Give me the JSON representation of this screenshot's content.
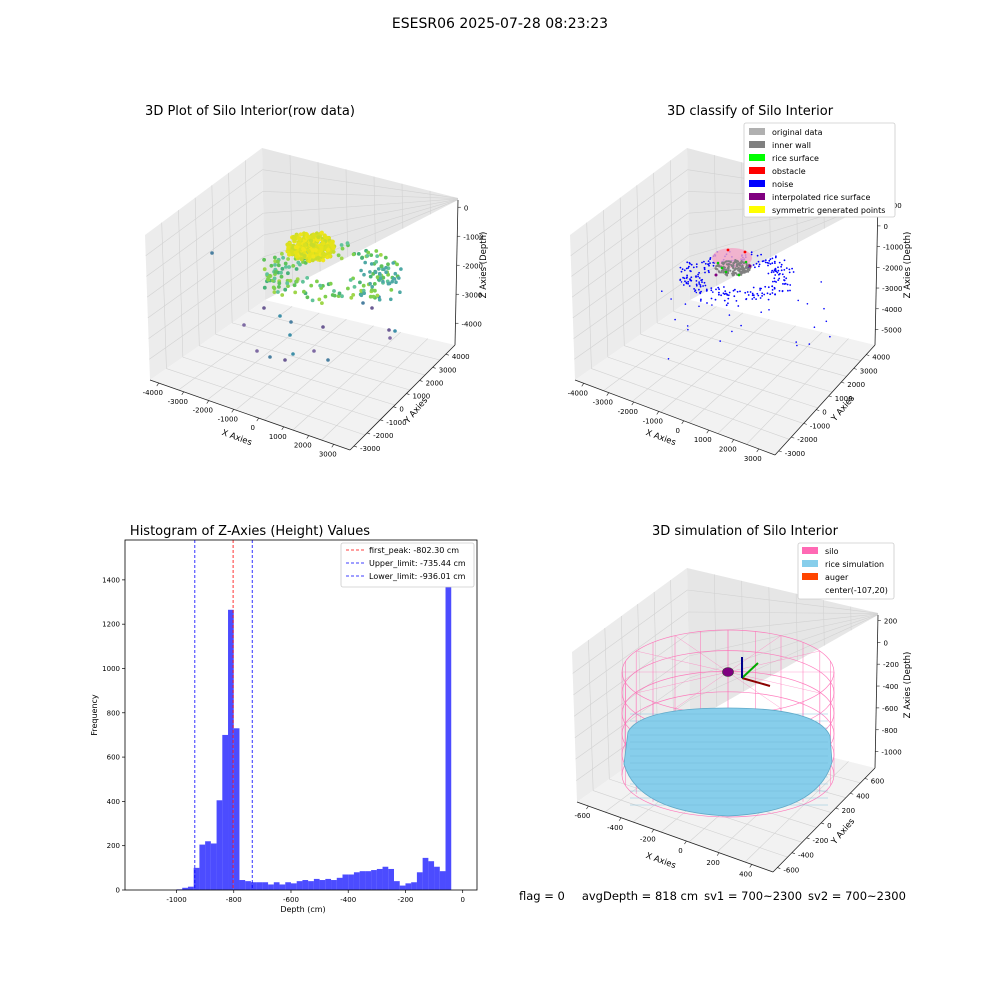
{
  "suptitle": "ESESR06 2025-07-28 08:23:23",
  "raw3d": {
    "title": "3D Plot of Silo Interior(row data)",
    "xlabel": "X Axies",
    "ylabel": "Y Axies",
    "zlabel": "Z Axies (Depth)",
    "xticks": [
      "-4000",
      "-3000",
      "-2000",
      "-1000",
      "0",
      "1000",
      "2000",
      "3000"
    ],
    "yticks": [
      "-3000",
      "-2000",
      "-1000",
      "0",
      "1000",
      "2000",
      "3000",
      "4000"
    ],
    "zticks": [
      "0",
      "-1000",
      "-2000",
      "-3000",
      "-4000"
    ]
  },
  "classify3d": {
    "title": "3D classify of Silo Interior",
    "xlabel": "X Axies",
    "ylabel": "Y Axies",
    "zlabel": "Z Axies (Depth)",
    "xticks": [
      "-4000",
      "-3000",
      "-2000",
      "-1000",
      "0",
      "1000",
      "2000",
      "3000"
    ],
    "yticks": [
      "-3000",
      "-2000",
      "-1000",
      "0",
      "1000",
      "2000",
      "3000",
      "4000"
    ],
    "zticks": [
      "1000",
      "0",
      "-1000",
      "-2000",
      "-3000",
      "-4000",
      "-5000"
    ],
    "legend": [
      {
        "label": "original data",
        "color": "#b0b0b0"
      },
      {
        "label": "inner wall",
        "color": "#808080"
      },
      {
        "label": "rice surface",
        "color": "#00ff00"
      },
      {
        "label": "obstacle",
        "color": "#ff0000"
      },
      {
        "label": "noise",
        "color": "#0000ff"
      },
      {
        "label": "interpolated rice surface",
        "color": "#800080"
      },
      {
        "label": "symmetric generated points",
        "color": "#ffff00"
      }
    ]
  },
  "sim3d": {
    "title": "3D simulation of Silo Interior",
    "xlabel": "X Axies",
    "ylabel": "Y Axies",
    "zlabel": "Z Axies (Depth)",
    "xticks": [
      "-600",
      "-400",
      "-200",
      "0",
      "200",
      "400"
    ],
    "yticks": [
      "-600",
      "-400",
      "-200",
      "0",
      "200",
      "400",
      "600"
    ],
    "zticks": [
      "200",
      "0",
      "-200",
      "-400",
      "-600",
      "-800",
      "-1000"
    ],
    "legend": [
      {
        "label": "silo",
        "color": "#ff69b4"
      },
      {
        "label": "rice simulation",
        "color": "#87ceeb"
      },
      {
        "label": "auger",
        "color": "#ff4500"
      },
      {
        "label": "center(-107,20)",
        "color": ""
      }
    ]
  },
  "chart_data": {
    "type": "bar",
    "title": "Histogram of Z-Axies (Height) Values",
    "xlabel": "Depth (cm)",
    "ylabel": "Frequency",
    "xlim": [
      -1180,
      50
    ],
    "ylim": [
      0,
      1580
    ],
    "bar_color": "#0000ff",
    "xticks": [
      -1000,
      -800,
      -600,
      -400,
      -200,
      0
    ],
    "yticks": [
      0,
      200,
      400,
      600,
      800,
      1000,
      1200,
      1400
    ],
    "bin_width": 20,
    "bins": [
      {
        "x": -1000,
        "count": 3
      },
      {
        "x": -980,
        "count": 10
      },
      {
        "x": -960,
        "count": 15
      },
      {
        "x": -940,
        "count": 100
      },
      {
        "x": -920,
        "count": 205
      },
      {
        "x": -900,
        "count": 220
      },
      {
        "x": -880,
        "count": 210
      },
      {
        "x": -860,
        "count": 405
      },
      {
        "x": -840,
        "count": 700
      },
      {
        "x": -820,
        "count": 1265
      },
      {
        "x": -800,
        "count": 730
      },
      {
        "x": -780,
        "count": 45
      },
      {
        "x": -760,
        "count": 40
      },
      {
        "x": -740,
        "count": 35
      },
      {
        "x": -720,
        "count": 35
      },
      {
        "x": -700,
        "count": 35
      },
      {
        "x": -680,
        "count": 25
      },
      {
        "x": -660,
        "count": 35
      },
      {
        "x": -640,
        "count": 25
      },
      {
        "x": -620,
        "count": 35
      },
      {
        "x": -600,
        "count": 30
      },
      {
        "x": -580,
        "count": 40
      },
      {
        "x": -560,
        "count": 45
      },
      {
        "x": -540,
        "count": 40
      },
      {
        "x": -520,
        "count": 50
      },
      {
        "x": -500,
        "count": 45
      },
      {
        "x": -480,
        "count": 50
      },
      {
        "x": -460,
        "count": 45
      },
      {
        "x": -440,
        "count": 55
      },
      {
        "x": -420,
        "count": 70
      },
      {
        "x": -400,
        "count": 70
      },
      {
        "x": -380,
        "count": 80
      },
      {
        "x": -360,
        "count": 85
      },
      {
        "x": -340,
        "count": 85
      },
      {
        "x": -320,
        "count": 90
      },
      {
        "x": -300,
        "count": 95
      },
      {
        "x": -280,
        "count": 105
      },
      {
        "x": -260,
        "count": 95
      },
      {
        "x": -240,
        "count": 40
      },
      {
        "x": -220,
        "count": 20
      },
      {
        "x": -200,
        "count": 30
      },
      {
        "x": -180,
        "count": 35
      },
      {
        "x": -160,
        "count": 80
      },
      {
        "x": -140,
        "count": 145
      },
      {
        "x": -120,
        "count": 130
      },
      {
        "x": -100,
        "count": 105
      },
      {
        "x": -80,
        "count": 85
      },
      {
        "x": -60,
        "count": 1500
      }
    ],
    "vlines": [
      {
        "x": -802.3,
        "color": "#ff0000",
        "label": "first_peak: -802.30 cm"
      },
      {
        "x": -735.44,
        "color": "#0000ff",
        "label": "Upper_limit: -735.44 cm"
      },
      {
        "x": -936.01,
        "color": "#0000ff",
        "label": "Lower_limit: -936.01 cm"
      }
    ]
  },
  "status": {
    "flag": "flag = 0",
    "avg_depth": "avgDepth = 818 cm",
    "sv1": "sv1 = 700~2300",
    "sv2": "sv2 = 700~2300"
  }
}
